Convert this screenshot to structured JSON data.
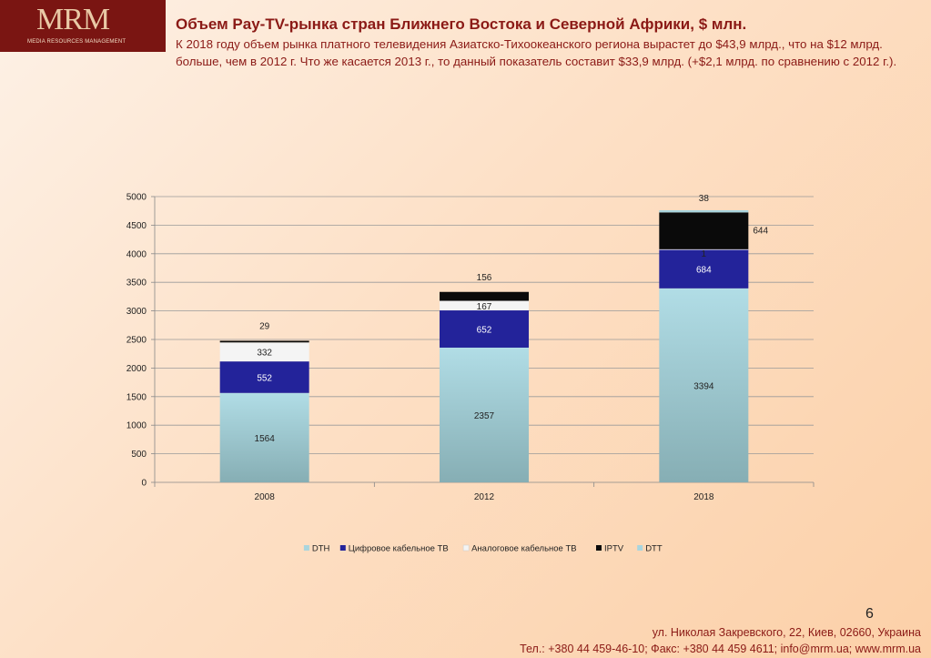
{
  "logo": {
    "mark": "MRM",
    "subtitle": "MEDIA RESOURCES MANAGEMENT"
  },
  "header": {
    "title": "Объем Pay-TV-рынка стран Ближнего Востока и Северной Африки, $ млн.",
    "description": "К 2018 году объем рынка платного телевидения Азиатско-Тихоокеанского региона вырастет до $43,9 млрд., что на $12 млрд. больше, чем в 2012 г. Что же касается 2013 г., то данный показатель составит $33,9 млрд. (+$2,1 млрд. по сравнению с 2012 г.)."
  },
  "chart_data": {
    "type": "bar",
    "stacked": true,
    "categories": [
      "2008",
      "2012",
      "2018"
    ],
    "series": [
      {
        "name": "DTH",
        "values": [
          1564,
          2357,
          3394
        ],
        "color": "#a9d5de",
        "label_color": "#222222"
      },
      {
        "name": "Цифровое кабельное ТВ",
        "values": [
          552,
          652,
          684
        ],
        "color": "#23239a",
        "label_color": "#ffffff"
      },
      {
        "name": "Аналоговое кабельное ТВ",
        "values": [
          332,
          167,
          1
        ],
        "color": "#f4f4f4",
        "label_color": "#222222"
      },
      {
        "name": "IPTV",
        "values": [
          29,
          156,
          644
        ],
        "color": "#0a0a0a",
        "label_color": "#222222"
      },
      {
        "name": "DTT",
        "values": [
          0,
          0,
          38
        ],
        "color": "#a9d5de",
        "label_color": "#222222"
      }
    ],
    "data_labels": [
      [
        "1564",
        "2357",
        "3394"
      ],
      [
        "552",
        "652",
        "684"
      ],
      [
        "332",
        "167",
        "1"
      ],
      [
        "29",
        "156",
        "644"
      ],
      [
        "",
        "",
        "38"
      ]
    ],
    "ylim": [
      0,
      5000
    ],
    "yticks": [
      0,
      500,
      1000,
      1500,
      2000,
      2500,
      3000,
      3500,
      4000,
      4500,
      5000
    ],
    "grid": true,
    "legend": "bottom"
  },
  "page_number": "6",
  "footer": {
    "address": "ул. Николая Закревского, 22,  Киев, 02660, Украина",
    "contacts": "Тел.: +380 44 459-46-10; Факс: +380 44 459 4611; info@mrm.ua; www.mrm.ua"
  }
}
